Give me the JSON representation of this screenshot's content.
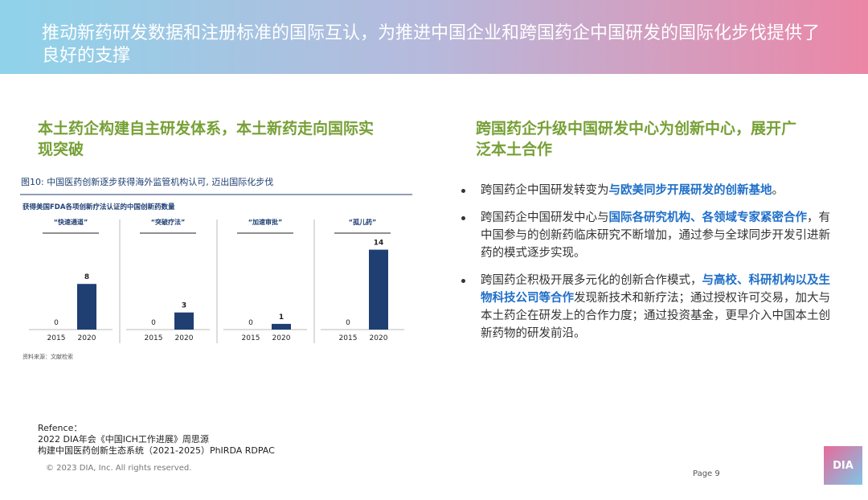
{
  "header": {
    "title": "推动新药研发数据和注册标准的国际互认，为推进中国企业和跨国药企中国研发的国际化步伐提供了良好的支撑"
  },
  "left": {
    "heading": "本土药企构建自主研发体系，本土新药走向国际实现突破"
  },
  "figure": {
    "caption": "图10: 中国医药创新逐步获得海外监管机构认可, 迈出国际化步伐",
    "subtitle": "获得美国FDA各项创新疗法认证的中国创新药数量",
    "source": "资料来源：文献检索"
  },
  "chart_data": [
    {
      "type": "bar",
      "title": "“快速通道”",
      "categories": [
        "2015",
        "2020"
      ],
      "values": [
        0,
        8
      ],
      "color": "#1f3f73"
    },
    {
      "type": "bar",
      "title": "“突破疗法”",
      "categories": [
        "2015",
        "2020"
      ],
      "values": [
        0,
        3
      ],
      "color": "#1f3f73"
    },
    {
      "type": "bar",
      "title": "“加速审批”",
      "categories": [
        "2015",
        "2020"
      ],
      "values": [
        0,
        1
      ],
      "color": "#1f3f73"
    },
    {
      "type": "bar",
      "title": "“孤儿药”",
      "categories": [
        "2015",
        "2020"
      ],
      "values": [
        0,
        14
      ],
      "color": "#1f3f73"
    }
  ],
  "right": {
    "heading": "跨国药企升级中国研发中心为创新中心，展开广泛本土合作",
    "bullets": [
      [
        "跨国药企中国研发转变为",
        {
          "text": "与欧美同步开展研发的创新基地",
          "bold": true
        },
        "。"
      ],
      [
        "跨国药企中国研发中心与",
        {
          "text": "国际各研究机构、各领域专家紧密合作",
          "bold": true
        },
        "，有中国参与的创新药临床研究不断增加，通过参与全球同步开发引进新药的模式逐步实现。"
      ],
      [
        "跨国药企积极开展多元化的创新合作模式，",
        {
          "text": "与高校、科研机构以及生物科技公司等合作",
          "bold": true
        },
        "发现新技术和新疗法；通过授权许可交易，加大与本土药企在研发上的合作力度；通过投资基金，更早介入中国本土创新药物的研发前沿。"
      ]
    ]
  },
  "reference": [
    "Refence：",
    "2022 DIA年会《中国ICH工作进展》周思源",
    "构建中国医药创新生态系统（2021-2025）PhIRDA RDPAC"
  ],
  "copyright": "© 2023 DIA, Inc. All rights reserved.",
  "page": "Page 9",
  "logo": "DIA"
}
